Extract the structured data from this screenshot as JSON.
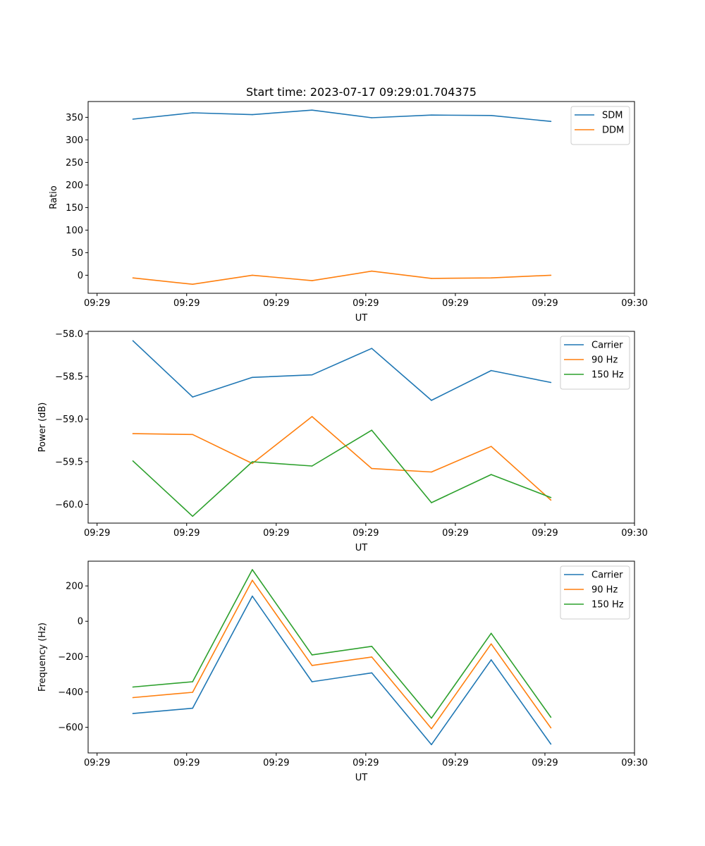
{
  "figure_title": "Start time: 2023-07-17 09:29:01.704375",
  "chart_data": [
    {
      "type": "line",
      "title": "Start time: 2023-07-17 09:29:01.704375",
      "xlabel": "UT",
      "ylabel": "Ratio",
      "x": [
        0,
        1,
        2,
        3,
        4,
        5,
        6,
        7
      ],
      "xlim": [
        -0.75,
        8.4
      ],
      "x_ticks": [
        -0.6,
        0.9,
        2.4,
        3.9,
        5.4,
        6.9,
        8.4
      ],
      "x_tick_labels": [
        "09:29",
        "09:29",
        "09:29",
        "09:29",
        "09:29",
        "09:29",
        "09:30"
      ],
      "ylim": [
        -40,
        385
      ],
      "y_ticks": [
        0,
        50,
        100,
        150,
        200,
        250,
        300,
        350
      ],
      "y_tick_labels": [
        "0",
        "50",
        "100",
        "150",
        "200",
        "250",
        "300",
        "350"
      ],
      "legend_position": "top-right",
      "series": [
        {
          "name": "SDM",
          "color": "#1f77b4",
          "values": [
            346,
            360,
            356,
            366,
            349,
            355,
            354,
            341
          ]
        },
        {
          "name": "DDM",
          "color": "#ff7f0e",
          "values": [
            -6,
            -20,
            0,
            -12,
            9,
            -7,
            -6,
            0
          ]
        }
      ]
    },
    {
      "type": "line",
      "title": "",
      "xlabel": "UT",
      "ylabel": "Power (dB)",
      "x": [
        0,
        1,
        2,
        3,
        4,
        5,
        6,
        7
      ],
      "xlim": [
        -0.75,
        8.4
      ],
      "x_ticks": [
        -0.6,
        0.9,
        2.4,
        3.9,
        5.4,
        6.9,
        8.4
      ],
      "x_tick_labels": [
        "09:29",
        "09:29",
        "09:29",
        "09:29",
        "09:29",
        "09:29",
        "09:30"
      ],
      "ylim": [
        -60.22,
        -57.97
      ],
      "y_ticks": [
        -58.0,
        -58.5,
        -59.0,
        -59.5,
        -60.0
      ],
      "y_tick_labels": [
        "−58.0",
        "−58.5",
        "−59.0",
        "−59.5",
        "−60.0"
      ],
      "legend_position": "top-right",
      "series": [
        {
          "name": "Carrier",
          "color": "#1f77b4",
          "values": [
            -58.08,
            -58.74,
            -58.51,
            -58.48,
            -58.17,
            -58.78,
            -58.43,
            -58.57
          ]
        },
        {
          "name": "90 Hz",
          "color": "#ff7f0e",
          "values": [
            -59.17,
            -59.18,
            -59.52,
            -58.97,
            -59.58,
            -59.62,
            -59.32,
            -59.95
          ]
        },
        {
          "name": "150 Hz",
          "color": "#2ca02c",
          "values": [
            -59.49,
            -60.14,
            -59.5,
            -59.55,
            -59.13,
            -59.98,
            -59.65,
            -59.92
          ]
        }
      ]
    },
    {
      "type": "line",
      "title": "",
      "xlabel": "UT",
      "ylabel": "Frequency (Hz)",
      "x": [
        0,
        1,
        2,
        3,
        4,
        5,
        6,
        7
      ],
      "xlim": [
        -0.75,
        8.4
      ],
      "x_ticks": [
        -0.6,
        0.9,
        2.4,
        3.9,
        5.4,
        6.9,
        8.4
      ],
      "x_tick_labels": [
        "09:29",
        "09:29",
        "09:29",
        "09:29",
        "09:29",
        "09:29",
        "09:30"
      ],
      "ylim": [
        -745,
        340
      ],
      "y_ticks": [
        200,
        0,
        -200,
        -400,
        -600
      ],
      "y_tick_labels": [
        "200",
        "0",
        "−200",
        "−400",
        "−600"
      ],
      "legend_position": "top-right",
      "series": [
        {
          "name": "Carrier",
          "color": "#1f77b4",
          "values": [
            -522,
            -492,
            142,
            -342,
            -292,
            -698,
            -218,
            -695
          ]
        },
        {
          "name": "90 Hz",
          "color": "#ff7f0e",
          "values": [
            -432,
            -402,
            232,
            -250,
            -202,
            -608,
            -128,
            -603
          ]
        },
        {
          "name": "150 Hz",
          "color": "#2ca02c",
          "values": [
            -372,
            -342,
            292,
            -190,
            -142,
            -548,
            -68,
            -543
          ]
        }
      ]
    }
  ]
}
